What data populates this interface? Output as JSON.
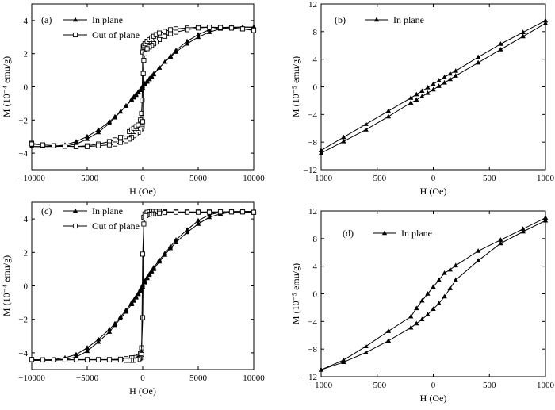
{
  "chart_data": [
    {
      "panel": "(a)",
      "type": "line",
      "xlabel": "H (Oe)",
      "ylabel": "M (10⁻⁴ emu/g)",
      "xlim": [
        -10000,
        10000
      ],
      "ylim": [
        -5,
        5
      ],
      "xticks": [
        -10000,
        -5000,
        0,
        5000,
        10000
      ],
      "yticks": [
        -4,
        -2,
        0,
        2,
        4
      ],
      "legend": "top-left",
      "series": [
        {
          "name": "In plane",
          "marker": "triangle-filled",
          "branch_up": {
            "x": [
              -10000,
              -9000,
              -8000,
              -7000,
              -6000,
              -5000,
              -4000,
              -3000,
              -2500,
              -2000,
              -1500,
              -1000,
              -800,
              -600,
              -400,
              -200,
              0,
              200,
              400,
              600,
              800,
              1000,
              1500,
              2000,
              2500,
              3000,
              4000,
              5000,
              6000,
              7000,
              8000,
              9000,
              10000
            ],
            "y": [
              -3.6,
              -3.6,
              -3.58,
              -3.5,
              -3.3,
              -3.0,
              -2.6,
              -2.1,
              -1.8,
              -1.5,
              -1.15,
              -0.75,
              -0.6,
              -0.45,
              -0.3,
              -0.15,
              0.05,
              0.2,
              0.35,
              0.5,
              0.65,
              0.8,
              1.15,
              1.5,
              1.85,
              2.2,
              2.75,
              3.15,
              3.45,
              3.58,
              3.6,
              3.6,
              3.6
            ]
          },
          "branch_down": {
            "x": [
              10000,
              9000,
              8000,
              7000,
              6000,
              5000,
              4000,
              3000,
              2500,
              2000,
              1500,
              1000,
              800,
              600,
              400,
              200,
              0,
              -200,
              -400,
              -600,
              -800,
              -1000,
              -1500,
              -2000,
              -2500,
              -3000,
              -4000,
              -5000,
              -6000,
              -7000,
              -8000,
              -9000,
              -10000
            ],
            "y": [
              3.6,
              3.6,
              3.58,
              3.5,
              3.3,
              3.0,
              2.6,
              2.1,
              1.8,
              1.5,
              1.15,
              0.75,
              0.6,
              0.45,
              0.3,
              0.15,
              -0.05,
              -0.2,
              -0.35,
              -0.5,
              -0.65,
              -0.8,
              -1.15,
              -1.5,
              -1.85,
              -2.2,
              -2.75,
              -3.15,
              -3.45,
              -3.58,
              -3.6,
              -3.6,
              -3.6
            ]
          }
        },
        {
          "name": "Out of plane",
          "marker": "square-open",
          "branch_up": {
            "x": [
              -10000,
              -9000,
              -8000,
              -7000,
              -6000,
              -5000,
              -4000,
              -3000,
              -2500,
              -2000,
              -1500,
              -1200,
              -1000,
              -800,
              -600,
              -400,
              -200,
              -100,
              -50,
              0,
              50,
              100,
              200,
              400,
              600,
              800,
              1000,
              1200,
              1500,
              2000,
              2500,
              3000,
              4000,
              5000,
              6000,
              7000,
              8000,
              9000,
              10000
            ],
            "y": [
              -3.4,
              -3.5,
              -3.55,
              -3.58,
              -3.6,
              -3.55,
              -3.45,
              -3.3,
              -3.2,
              -3.05,
              -2.85,
              -2.7,
              -2.6,
              -2.5,
              -2.4,
              -2.3,
              -2.0,
              -1.6,
              -0.8,
              2.1,
              2.4,
              2.5,
              2.6,
              2.75,
              2.85,
              2.95,
              3.05,
              3.15,
              3.25,
              3.35,
              3.45,
              3.5,
              3.55,
              3.6,
              3.6,
              3.58,
              3.55,
              3.5,
              3.45
            ]
          },
          "branch_down": {
            "x": [
              10000,
              9000,
              8000,
              7000,
              6000,
              5000,
              4000,
              3000,
              2500,
              2000,
              1500,
              1200,
              1000,
              800,
              600,
              400,
              200,
              100,
              50,
              0,
              -50,
              -100,
              -200,
              -400,
              -600,
              -800,
              -1000,
              -1200,
              -1500,
              -2000,
              -2500,
              -3000,
              -4000,
              -5000,
              -6000,
              -7000,
              -8000,
              -9000,
              -10000
            ],
            "y": [
              3.4,
              3.5,
              3.55,
              3.58,
              3.6,
              3.55,
              3.45,
              3.3,
              3.2,
              3.05,
              2.85,
              2.7,
              2.6,
              2.5,
              2.4,
              2.3,
              2.0,
              1.6,
              0.8,
              -2.1,
              -2.4,
              -2.5,
              -2.6,
              -2.75,
              -2.85,
              -2.95,
              -3.05,
              -3.15,
              -3.25,
              -3.35,
              -3.45,
              -3.5,
              -3.55,
              -3.6,
              -3.6,
              -3.58,
              -3.55,
              -3.5,
              -3.45
            ]
          }
        }
      ]
    },
    {
      "panel": "(b)",
      "type": "line",
      "xlabel": "H (Oe)",
      "ylabel": "M (10⁻⁵ emu/g)",
      "xlim": [
        -1000,
        1000
      ],
      "ylim": [
        -12,
        12
      ],
      "xticks": [
        -1000,
        -500,
        0,
        500,
        1000
      ],
      "yticks": [
        -12,
        -8,
        -4,
        0,
        4,
        8,
        12
      ],
      "legend": "top-left",
      "series": [
        {
          "name": "In plane",
          "marker": "triangle-filled",
          "branch_up": {
            "x": [
              -1000,
              -800,
              -600,
              -400,
              -200,
              -150,
              -100,
              -50,
              0,
              50,
              100,
              150,
              200,
              400,
              600,
              800,
              1000
            ],
            "y": [
              -9.6,
              -7.9,
              -6.2,
              -4.3,
              -2.3,
              -1.9,
              -1.4,
              -0.9,
              -0.4,
              0.1,
              0.6,
              1.1,
              1.6,
              3.5,
              5.4,
              7.3,
              9.2
            ]
          },
          "branch_down": {
            "x": [
              1000,
              800,
              600,
              400,
              200,
              150,
              100,
              50,
              0,
              -50,
              -100,
              -150,
              -200,
              -400,
              -600,
              -800,
              -1000
            ],
            "y": [
              9.6,
              7.9,
              6.2,
              4.3,
              2.3,
              1.9,
              1.4,
              0.9,
              0.4,
              -0.1,
              -0.6,
              -1.1,
              -1.6,
              -3.5,
              -5.4,
              -7.3,
              -9.2
            ]
          }
        }
      ]
    },
    {
      "panel": "(c)",
      "type": "line",
      "xlabel": "H (Oe)",
      "ylabel": "M (10⁻⁴ emu/g)",
      "xlim": [
        -10000,
        10000
      ],
      "ylim": [
        -5,
        5
      ],
      "xticks": [
        -10000,
        -5000,
        0,
        5000,
        10000
      ],
      "yticks": [
        -4,
        -2,
        0,
        2,
        4
      ],
      "legend": "top-left",
      "series": [
        {
          "name": "In plane",
          "marker": "triangle-filled",
          "branch_up": {
            "x": [
              -10000,
              -9000,
              -8000,
              -7000,
              -6000,
              -5000,
              -4000,
              -3000,
              -2500,
              -2000,
              -1500,
              -1000,
              -800,
              -600,
              -400,
              -200,
              0,
              200,
              400,
              600,
              800,
              1000,
              1500,
              2000,
              2500,
              3000,
              4000,
              5000,
              6000,
              7000,
              8000,
              9000,
              10000
            ],
            "y": [
              -4.45,
              -4.45,
              -4.4,
              -4.3,
              -4.1,
              -3.7,
              -3.2,
              -2.6,
              -2.25,
              -1.85,
              -1.45,
              -1.0,
              -0.85,
              -0.65,
              -0.45,
              -0.2,
              0.05,
              0.3,
              0.5,
              0.7,
              0.9,
              1.1,
              1.55,
              1.95,
              2.35,
              2.75,
              3.35,
              3.9,
              4.25,
              4.4,
              4.45,
              4.45,
              4.45
            ]
          },
          "branch_down": {
            "x": [
              10000,
              9000,
              8000,
              7000,
              6000,
              5000,
              4000,
              3000,
              2500,
              2000,
              1500,
              1000,
              800,
              600,
              400,
              200,
              0,
              -200,
              -400,
              -600,
              -800,
              -1000,
              -1500,
              -2000,
              -2500,
              -3000,
              -4000,
              -5000,
              -6000,
              -7000,
              -8000,
              -9000,
              -10000
            ],
            "y": [
              4.45,
              4.45,
              4.4,
              4.3,
              4.1,
              3.7,
              3.2,
              2.6,
              2.25,
              1.85,
              1.45,
              1.0,
              0.85,
              0.65,
              0.45,
              0.2,
              -0.05,
              -0.3,
              -0.5,
              -0.7,
              -0.9,
              -1.1,
              -1.55,
              -1.95,
              -2.35,
              -2.75,
              -3.35,
              -3.9,
              -4.25,
              -4.4,
              -4.45,
              -4.45,
              -4.45
            ]
          }
        },
        {
          "name": "Out of plane",
          "marker": "square-open",
          "branch_up": {
            "x": [
              -10000,
              -9000,
              -8000,
              -7000,
              -6000,
              -5000,
              -4000,
              -3000,
              -2000,
              -1500,
              -1000,
              -800,
              -600,
              -400,
              -300,
              -200,
              -100,
              0,
              100,
              200,
              300,
              400,
              600,
              800,
              1000,
              1200,
              1500,
              2000,
              3000,
              4000,
              5000,
              6000,
              7000,
              8000,
              9000,
              10000
            ],
            "y": [
              -4.4,
              -4.42,
              -4.42,
              -4.42,
              -4.4,
              -4.4,
              -4.4,
              -4.4,
              -4.38,
              -4.35,
              -4.3,
              -4.3,
              -4.28,
              -4.25,
              -4.2,
              -4.05,
              -3.7,
              -1.9,
              4.1,
              4.3,
              4.35,
              4.4,
              4.42,
              4.45,
              4.45,
              4.45,
              4.45,
              4.43,
              4.42,
              4.42,
              4.42,
              4.42,
              4.42,
              4.42,
              4.42,
              4.4
            ]
          },
          "branch_down": {
            "x": [
              10000,
              9000,
              8000,
              7000,
              6000,
              5000,
              4000,
              3000,
              2000,
              1500,
              1000,
              800,
              600,
              400,
              300,
              200,
              100,
              0,
              -100,
              -200,
              -300,
              -400,
              -600,
              -800,
              -1000,
              -1200,
              -1500,
              -2000,
              -3000,
              -4000,
              -5000,
              -6000,
              -7000,
              -8000,
              -9000,
              -10000
            ],
            "y": [
              4.4,
              4.42,
              4.42,
              4.42,
              4.4,
              4.4,
              4.4,
              4.4,
              4.38,
              4.35,
              4.3,
              4.3,
              4.28,
              4.25,
              4.2,
              4.05,
              3.7,
              1.9,
              -4.1,
              -4.3,
              -4.35,
              -4.4,
              -4.42,
              -4.45,
              -4.45,
              -4.45,
              -4.45,
              -4.43,
              -4.42,
              -4.42,
              -4.42,
              -4.42,
              -4.42,
              -4.42,
              -4.42,
              -4.4
            ]
          }
        }
      ]
    },
    {
      "panel": "(d)",
      "type": "line",
      "xlabel": "H (Oe)",
      "ylabel": "M (10⁻⁵ emu/g)",
      "xlim": [
        -1000,
        1000
      ],
      "ylim": [
        -12,
        12
      ],
      "xticks": [
        -1000,
        -500,
        0,
        500,
        1000
      ],
      "yticks": [
        -12,
        -8,
        -4,
        0,
        4,
        8,
        12
      ],
      "legend": "top-left",
      "series": [
        {
          "name": "In plane",
          "marker": "triangle-filled",
          "branch_up": {
            "x": [
              -1000,
              -800,
              -600,
              -400,
              -200,
              -150,
              -100,
              -50,
              0,
              50,
              100,
              150,
              200,
              400,
              600,
              800,
              1000
            ],
            "y": [
              -11.0,
              -9.9,
              -8.5,
              -6.8,
              -4.9,
              -4.3,
              -3.7,
              -3.0,
              -2.2,
              -1.4,
              -0.4,
              0.8,
              2.0,
              4.8,
              7.3,
              9.0,
              10.6
            ]
          },
          "branch_down": {
            "x": [
              1000,
              800,
              600,
              400,
              200,
              150,
              100,
              50,
              0,
              -50,
              -100,
              -150,
              -200,
              -400,
              -600,
              -800,
              -1000
            ],
            "y": [
              11.0,
              9.4,
              7.8,
              6.2,
              4.1,
              3.5,
              3.0,
              2.0,
              1.0,
              0.0,
              -1.0,
              -2.1,
              -3.3,
              -5.4,
              -7.6,
              -9.6,
              -11.0
            ]
          }
        }
      ]
    }
  ]
}
